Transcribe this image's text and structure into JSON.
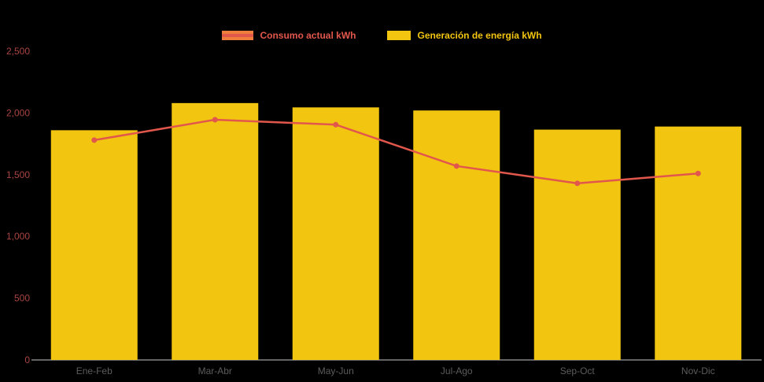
{
  "colors": {
    "background": "#000000",
    "bar": "#f2c511",
    "line": "#e2574c",
    "legend_consumo_swatch_outer": "#ef7d3b",
    "axis_line": "#c9c9c9",
    "y_label_color": "#a94442",
    "x_label_color": "#5c5c5c"
  },
  "legend": [
    {
      "label": "Consumo actual kWh",
      "label_color": "#e2574c",
      "marker": "line"
    },
    {
      "label": "Generación de energía kWh",
      "label_color": "#f2c511",
      "marker": "rect"
    }
  ],
  "chart_data": {
    "type": "bar+line",
    "title": "",
    "xlabel": "",
    "ylabel": "",
    "categories": [
      "Ene-Feb",
      "Mar-Abr",
      "May-Jun",
      "Jul-Ago",
      "Sep-Oct",
      "Nov-Dic"
    ],
    "series": [
      {
        "name": "Generación de energía kWh",
        "type": "bar",
        "color": "#f2c511",
        "values": [
          1860,
          2080,
          2045,
          2020,
          1865,
          1890
        ]
      },
      {
        "name": "Consumo actual kWh",
        "type": "line",
        "color": "#e2574c",
        "values": [
          1780,
          1945,
          1905,
          1570,
          1430,
          1510
        ]
      }
    ],
    "ylim": [
      0,
      2500
    ],
    "yticks": [
      0,
      500,
      1000,
      1500,
      2000,
      2500
    ],
    "ytick_labels": [
      "0",
      "500",
      "1,000",
      "1,500",
      "2,000",
      "2,500"
    ],
    "grid": false,
    "legend_position": "top"
  }
}
